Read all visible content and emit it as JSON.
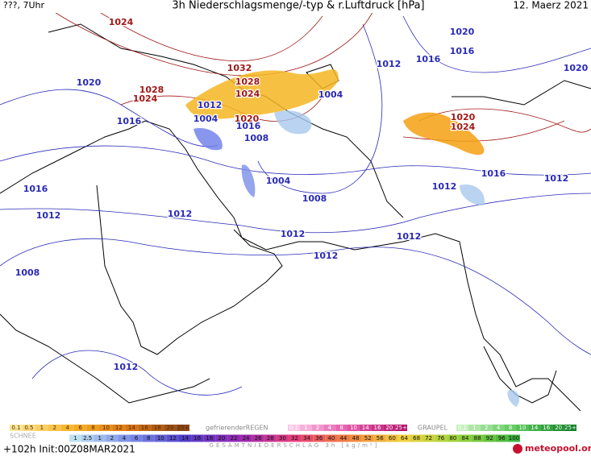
{
  "header": {
    "left": "???, 7Uhr",
    "title": "3h Niederschlagsmenge/-typ & r.Luftdruck [hPa]",
    "date": "12. Maerz 2021"
  },
  "isobar_labels": [
    "1024",
    "1032",
    "1028",
    "1028",
    "1024",
    "1024",
    "1020",
    "1020",
    "1024",
    "1020",
    "1016",
    "1012",
    "1016",
    "1020",
    "1004",
    "1012",
    "1004",
    "1016",
    "1008",
    "1016",
    "1004",
    "1008",
    "1016",
    "1012",
    "1012",
    "1016",
    "1012",
    "1012",
    "1012",
    "1012",
    "1012",
    "1008",
    "1012",
    "1020"
  ],
  "legend": {
    "snow_scale": [
      "0.1",
      "0.5",
      "1",
      "2",
      "4",
      "6",
      "8",
      "10",
      "12",
      "14",
      "16",
      "18",
      "20",
      "25+"
    ],
    "snow_label": "SCHNEE",
    "freezing_rain_label": "gefrierenderREGEN",
    "freezing_rain_scale": [
      "0.1",
      "1",
      "2",
      "4",
      "8",
      "10",
      "14",
      "16",
      "20",
      "25+"
    ],
    "graupel_label": "GRAUPEL",
    "graupel_scale": [
      "0.1",
      "1",
      "2",
      "4",
      "8",
      "10",
      "14",
      "16",
      "20",
      "25+"
    ],
    "total_scale": [
      "1",
      "2.5",
      "1",
      "2",
      "4",
      "6",
      "8",
      "10",
      "12",
      "14",
      "16",
      "18",
      "20",
      "22",
      "24",
      "26",
      "28",
      "30",
      "32",
      "34",
      "36",
      "40",
      "44",
      "48",
      "52",
      "56",
      "60",
      "64",
      "68",
      "72",
      "76",
      "80",
      "84",
      "88",
      "92",
      "96",
      "100"
    ],
    "total_label": "GESAMTNIEDERSCHLAG 3h [kg/m²]"
  },
  "footer": {
    "run": "+102h Init:00Z08MAR2021",
    "brand": "meteopool.org"
  }
}
